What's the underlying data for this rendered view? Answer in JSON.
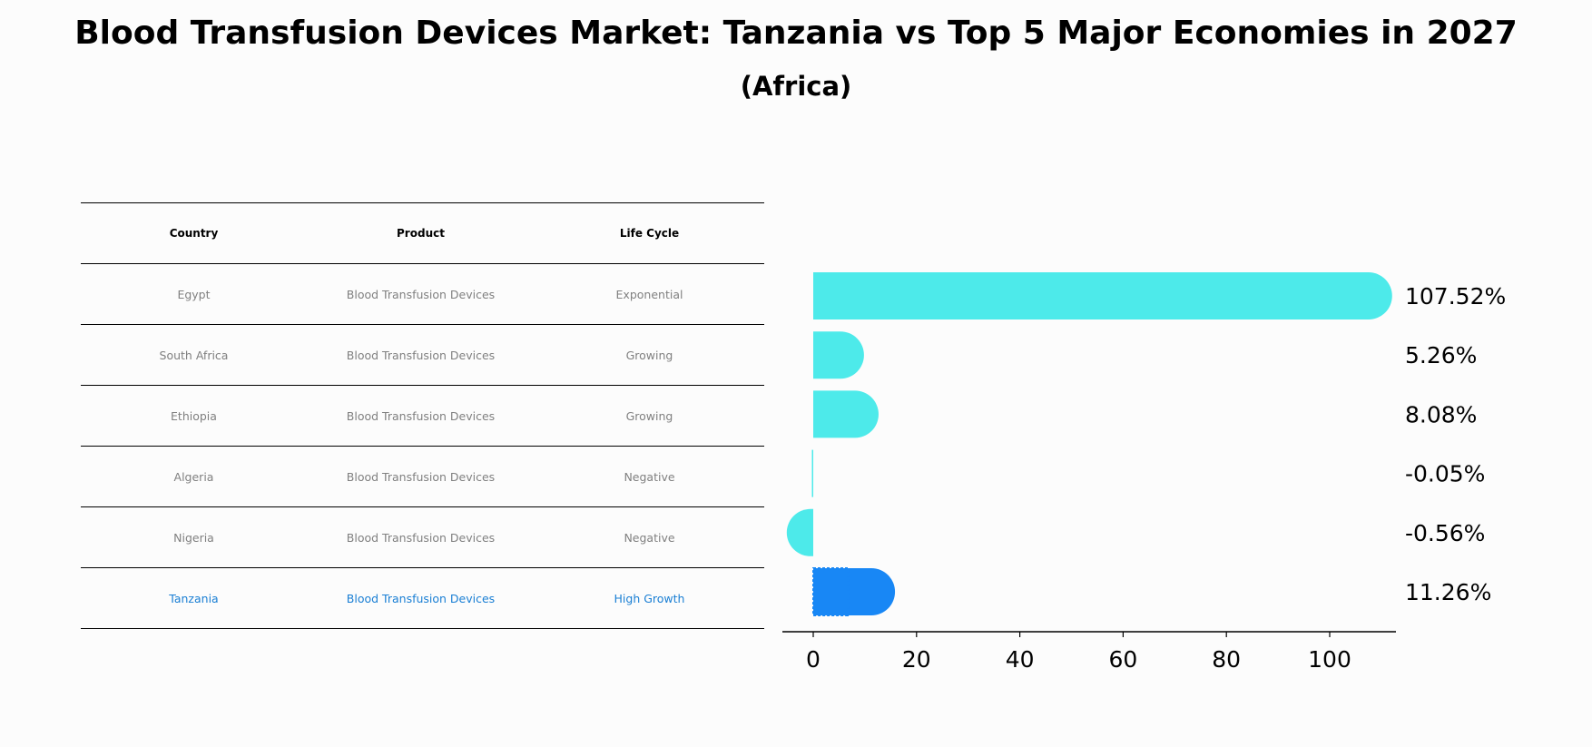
{
  "title": "Blood Transfusion Devices Market: Tanzania vs Top 5 Major Economies in 2027",
  "subtitle": "(Africa)",
  "colors": {
    "bar": "#4deaea",
    "highlight_bar": "#1887f5",
    "highlight_text": "#1a7fd4"
  },
  "table": {
    "headers": [
      "Country",
      "Product",
      "Life Cycle"
    ],
    "rows": [
      [
        "Egypt",
        "Blood Transfusion Devices",
        "Exponential"
      ],
      [
        "South Africa",
        "Blood Transfusion Devices",
        "Growing"
      ],
      [
        "Ethiopia",
        "Blood Transfusion Devices",
        "Growing"
      ],
      [
        "Algeria",
        "Blood Transfusion Devices",
        "Negative"
      ],
      [
        "Nigeria",
        "Blood Transfusion Devices",
        "Negative"
      ],
      [
        "Tanzania",
        "Blood Transfusion Devices",
        "High Growth"
      ]
    ]
  },
  "chart_data": {
    "type": "bar",
    "orientation": "horizontal",
    "categories": [
      "Egypt",
      "South Africa",
      "Ethiopia",
      "Algeria",
      "Nigeria",
      "Tanzania"
    ],
    "values": [
      107.52,
      5.26,
      8.08,
      -0.05,
      -0.56,
      11.26
    ],
    "value_labels": [
      "107.52%",
      "5.26%",
      "8.08%",
      "-0.05%",
      "-0.56%",
      "11.26%"
    ],
    "highlight": "Tanzania",
    "xlim": [
      -6,
      113
    ],
    "xticks": [
      0,
      20,
      40,
      60,
      80,
      100
    ],
    "xlabel": "",
    "ylabel": ""
  }
}
